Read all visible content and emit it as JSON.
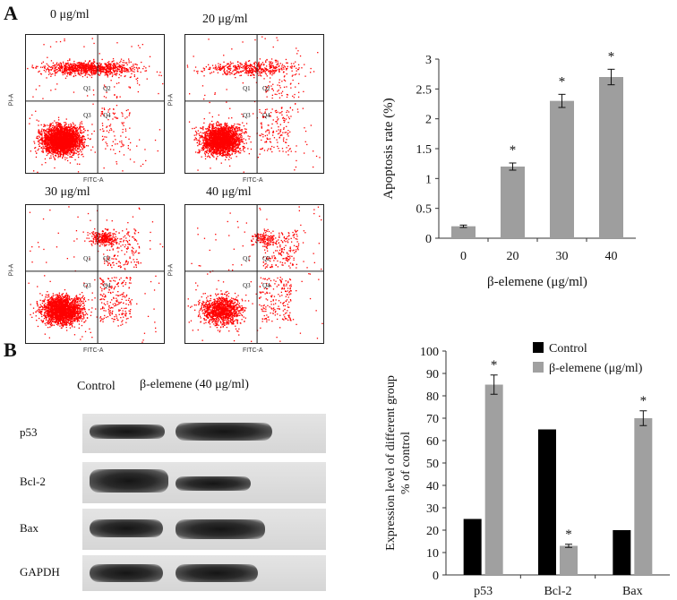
{
  "panels": {
    "a_label": "A",
    "b_label": "B"
  },
  "flow": {
    "plots": [
      {
        "concentration": "0 μg/ml",
        "q": [
          "Q1",
          "Q2",
          "Q3",
          "Q4"
        ]
      },
      {
        "concentration": "20 μg/ml",
        "q": [
          "Q1",
          "Q2",
          "Q3",
          "Q4"
        ]
      },
      {
        "concentration": "30 μg/ml",
        "q": [
          "Q1",
          "Q2",
          "Q3",
          "Q4"
        ]
      },
      {
        "concentration": "40 μg/ml",
        "q": [
          "Q1",
          "Q2",
          "Q3",
          "Q4"
        ]
      }
    ],
    "x_axis": "FITC-A",
    "y_axis": "PI-A",
    "dot_color": "#ff0000"
  },
  "western": {
    "headers": [
      "Control",
      "β-elemene (40 μg/ml)"
    ],
    "rows": [
      "p53",
      "Bcl-2",
      "Bax",
      "GAPDH"
    ]
  },
  "chart_data": [
    {
      "type": "bar",
      "categories": [
        "0",
        "20",
        "30",
        "40"
      ],
      "values": [
        0.2,
        1.2,
        2.3,
        2.7
      ],
      "errors": [
        0.02,
        0.06,
        0.11,
        0.13
      ],
      "significance": [
        "",
        "*",
        "*",
        "*"
      ],
      "xlabel": "β-elemene (μg/ml)",
      "ylabel": "Apoptosis  rate  (%)",
      "ylim": [
        0,
        3
      ],
      "yticks": [
        "0",
        "0.5",
        "1",
        "1.5",
        "2",
        "2.5",
        "3"
      ],
      "bar_color": "#9e9e9e"
    },
    {
      "type": "bar",
      "categories": [
        "p53",
        "Bcl-2",
        "Bax"
      ],
      "series": [
        {
          "name": "Control",
          "values": [
            25,
            65,
            20
          ],
          "errors": [
            0,
            0,
            0
          ],
          "significance": [
            "",
            "",
            ""
          ],
          "color": "#000000"
        },
        {
          "name": "β-elemene (μg/ml)",
          "values": [
            85,
            13,
            70
          ],
          "errors": [
            4.3,
            0.7,
            3.3
          ],
          "significance": [
            "*",
            "*",
            "*"
          ],
          "color": "#a0a0a0"
        }
      ],
      "ylabel_line1": "Expression level of different group",
      "ylabel_line2": "% of control",
      "ylim": [
        0,
        100
      ],
      "yticks": [
        "0",
        "10",
        "20",
        "30",
        "40",
        "50",
        "60",
        "70",
        "80",
        "90",
        "100"
      ],
      "legend": "top-right"
    }
  ]
}
